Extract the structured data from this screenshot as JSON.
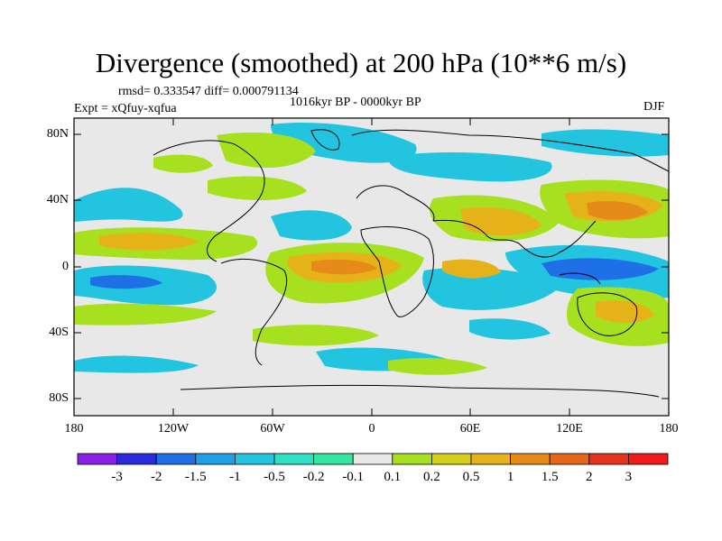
{
  "title": "Divergence (smoothed) at 200 hPa (10**6 m/s)",
  "stats": "rmsd= 0.333547 diff= 0.000791134",
  "expt": "Expt = xQfuy-xqfua",
  "period": "1016kyr BP - 0000kyr BP",
  "season": "DJF",
  "lat_labels": [
    "80N",
    "40N",
    "0",
    "40S",
    "80S"
  ],
  "lon_labels": [
    "180",
    "120W",
    "60W",
    "0",
    "60E",
    "120E",
    "180"
  ],
  "colorbar": {
    "labels": [
      "-3",
      "-2",
      "-1.5",
      "-1",
      "-0.5",
      "-0.2",
      "-0.1",
      "0.1",
      "0.2",
      "0.5",
      "1",
      "1.5",
      "2",
      "3"
    ],
    "colors": [
      "#8a1fe6",
      "#2a2ae0",
      "#1f6fe6",
      "#1fa0e6",
      "#22c4e0",
      "#2ee0c4",
      "#33e6a0",
      "#e8e8e8",
      "#a6e01f",
      "#d4d01a",
      "#e6b21a",
      "#e68a1a",
      "#e6661a",
      "#e6331a",
      "#f01a1a"
    ]
  }
}
